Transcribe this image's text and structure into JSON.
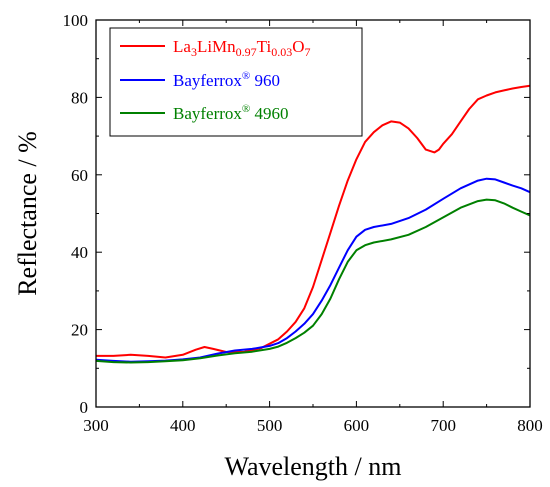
{
  "chart_data": {
    "type": "line",
    "xlabel": "Wavelength / nm",
    "ylabel": "Reflectance / %",
    "xlim": [
      300,
      800
    ],
    "ylim": [
      0,
      100
    ],
    "xticks": [
      300,
      400,
      500,
      600,
      700,
      800
    ],
    "yticks": [
      0,
      20,
      40,
      60,
      80,
      100
    ],
    "grid": false,
    "legend_position": "top-left",
    "series": [
      {
        "name": "La3LiMn0.97Ti0.03O7",
        "color": "#ff0000",
        "x": [
          300,
          320,
          340,
          360,
          380,
          400,
          415,
          425,
          435,
          450,
          470,
          490,
          510,
          520,
          530,
          540,
          550,
          560,
          570,
          580,
          590,
          600,
          610,
          620,
          630,
          640,
          650,
          660,
          670,
          680,
          690,
          695,
          700,
          710,
          720,
          730,
          740,
          750,
          760,
          770,
          780,
          790,
          800
        ],
        "y": [
          13.2,
          13.2,
          13.5,
          13.2,
          12.8,
          13.5,
          14.8,
          15.5,
          15.0,
          14.2,
          14.2,
          15.2,
          17.5,
          19.5,
          22.0,
          25.5,
          31.0,
          38.0,
          45.0,
          52.0,
          58.5,
          64.0,
          68.5,
          71.0,
          72.8,
          73.8,
          73.5,
          72.0,
          69.5,
          66.5,
          65.8,
          66.5,
          68.0,
          70.5,
          73.8,
          77.0,
          79.5,
          80.5,
          81.3,
          81.8,
          82.3,
          82.7,
          83.0
        ]
      },
      {
        "name": "Bayferrox® 960",
        "color": "#0000ff",
        "x": [
          300,
          320,
          340,
          360,
          380,
          400,
          420,
          440,
          460,
          480,
          500,
          510,
          520,
          530,
          540,
          550,
          560,
          570,
          580,
          590,
          600,
          610,
          620,
          640,
          660,
          680,
          700,
          720,
          740,
          750,
          760,
          770,
          780,
          790,
          800
        ],
        "y": [
          12.2,
          11.9,
          11.7,
          11.8,
          12.0,
          12.3,
          12.8,
          13.8,
          14.6,
          15.0,
          15.8,
          16.5,
          17.8,
          19.5,
          21.5,
          24.0,
          27.5,
          31.5,
          36.0,
          40.5,
          44.0,
          45.8,
          46.5,
          47.3,
          48.8,
          51.0,
          53.8,
          56.5,
          58.5,
          59.0,
          58.8,
          58.0,
          57.2,
          56.5,
          55.5
        ]
      },
      {
        "name": "Bayferrox® 4960",
        "color": "#008000",
        "x": [
          300,
          320,
          340,
          360,
          380,
          400,
          420,
          440,
          460,
          480,
          500,
          510,
          520,
          530,
          540,
          550,
          560,
          570,
          580,
          590,
          600,
          610,
          620,
          640,
          660,
          680,
          700,
          720,
          740,
          750,
          760,
          770,
          780,
          790,
          800
        ],
        "y": [
          11.9,
          11.6,
          11.5,
          11.6,
          11.8,
          12.1,
          12.6,
          13.3,
          13.9,
          14.3,
          15.0,
          15.6,
          16.6,
          17.8,
          19.2,
          21.0,
          24.0,
          28.0,
          33.0,
          37.5,
          40.5,
          41.8,
          42.5,
          43.3,
          44.5,
          46.5,
          49.0,
          51.5,
          53.2,
          53.6,
          53.4,
          52.6,
          51.5,
          50.5,
          49.5
        ]
      }
    ]
  },
  "legend": {
    "red": {
      "base": "La",
      "s1": "3",
      "mid1": "LiMn",
      "s2": "0.97",
      "mid2": "Ti",
      "s3": "0.03",
      "mid3": "O",
      "s4": "7"
    },
    "blue": {
      "base": "Bayferrox",
      "sup": "®",
      "tail": " 960"
    },
    "green": {
      "base": "Bayferrox",
      "sup": "®",
      "tail": " 4960"
    }
  }
}
